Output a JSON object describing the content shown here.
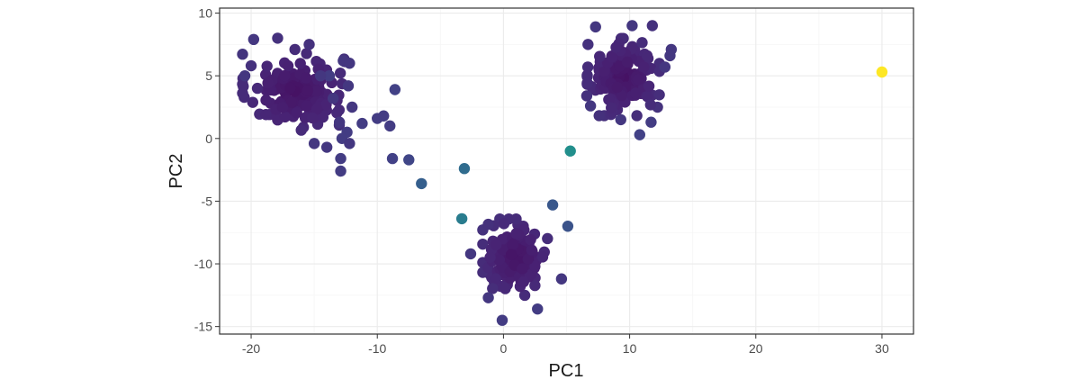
{
  "chart_data": {
    "type": "scatter",
    "title": "",
    "xlabel": "PC1",
    "ylabel": "PC2",
    "xlim": [
      -22.5,
      32.5
    ],
    "ylim": [
      -15.6,
      10.4
    ],
    "x_ticks": [
      -20,
      -10,
      0,
      10,
      20,
      30
    ],
    "y_ticks": [
      -15,
      -10,
      -5,
      0,
      5,
      10
    ],
    "x_tick_labels": [
      "-20",
      "-10",
      "0",
      "10",
      "20",
      "30"
    ],
    "y_tick_labels": [
      "-15",
      "-10",
      "-5",
      "0",
      "5",
      "10"
    ],
    "grid": true,
    "legend": "none",
    "color_scale": "viridis",
    "colors": {
      "panel_border": "#333333",
      "grid_major": "#ebebeb",
      "grid_minor": "#f5f5f5",
      "background": "#ffffff"
    },
    "clusters": [
      {
        "name": "cluster-upper-left",
        "center": [
          -16.5,
          3.8
        ],
        "spread": [
          1.9,
          1.5
        ],
        "count": 140,
        "value": 0.06
      },
      {
        "name": "cluster-upper-right",
        "center": [
          9.5,
          4.9
        ],
        "spread": [
          1.3,
          1.4
        ],
        "count": 150,
        "value": 0.06
      },
      {
        "name": "cluster-lower",
        "center": [
          1.0,
          -9.5
        ],
        "spread": [
          1.2,
          1.4
        ],
        "count": 150,
        "value": 0.06
      }
    ],
    "points": [
      {
        "x": -19.8,
        "y": 7.9,
        "value": 0.2
      },
      {
        "x": -17.9,
        "y": 8.0,
        "value": 0.18
      },
      {
        "x": -15.4,
        "y": 7.5,
        "value": 0.18
      },
      {
        "x": -12.7,
        "y": 6.2,
        "value": 0.2
      },
      {
        "x": -12.2,
        "y": 6.0,
        "value": 0.2
      },
      {
        "x": -13.8,
        "y": 5.0,
        "value": 0.22
      },
      {
        "x": -14.5,
        "y": 5.0,
        "value": 0.2
      },
      {
        "x": -20.5,
        "y": 5.0,
        "value": 0.2
      },
      {
        "x": -20.0,
        "y": 5.8,
        "value": 0.18
      },
      {
        "x": -19.5,
        "y": 4.0,
        "value": 0.15
      },
      {
        "x": -12.3,
        "y": 4.2,
        "value": 0.2
      },
      {
        "x": -13.5,
        "y": 3.2,
        "value": 0.2
      },
      {
        "x": -12.0,
        "y": 2.5,
        "value": 0.2
      },
      {
        "x": -13.0,
        "y": 1.3,
        "value": 0.2
      },
      {
        "x": -11.2,
        "y": 1.2,
        "value": 0.22
      },
      {
        "x": -10.0,
        "y": 1.6,
        "value": 0.22
      },
      {
        "x": -9.5,
        "y": 1.8,
        "value": 0.22
      },
      {
        "x": -9.0,
        "y": 1.0,
        "value": 0.22
      },
      {
        "x": -12.4,
        "y": 0.5,
        "value": 0.22
      },
      {
        "x": -12.8,
        "y": 0.0,
        "value": 0.22
      },
      {
        "x": -15.0,
        "y": -0.4,
        "value": 0.2
      },
      {
        "x": -14.0,
        "y": -0.7,
        "value": 0.2
      },
      {
        "x": -12.2,
        "y": -0.4,
        "value": 0.2
      },
      {
        "x": -12.9,
        "y": -1.6,
        "value": 0.22
      },
      {
        "x": -12.9,
        "y": -2.6,
        "value": 0.22
      },
      {
        "x": -8.6,
        "y": 3.9,
        "value": 0.24
      },
      {
        "x": -8.8,
        "y": -1.6,
        "value": 0.24
      },
      {
        "x": -7.5,
        "y": -1.7,
        "value": 0.26
      },
      {
        "x": -6.5,
        "y": -3.6,
        "value": 0.38
      },
      {
        "x": -3.1,
        "y": -2.4,
        "value": 0.44
      },
      {
        "x": -3.3,
        "y": -6.4,
        "value": 0.52
      },
      {
        "x": 5.3,
        "y": -1.0,
        "value": 0.62
      },
      {
        "x": 3.9,
        "y": -5.3,
        "value": 0.34
      },
      {
        "x": 5.1,
        "y": -7.0,
        "value": 0.32
      },
      {
        "x": -2.6,
        "y": -9.2,
        "value": 0.2
      },
      {
        "x": -1.2,
        "y": -12.7,
        "value": 0.2
      },
      {
        "x": -0.1,
        "y": -14.5,
        "value": 0.22
      },
      {
        "x": 2.7,
        "y": -13.6,
        "value": 0.22
      },
      {
        "x": 4.6,
        "y": -11.2,
        "value": 0.2
      },
      {
        "x": 7.3,
        "y": 8.9,
        "value": 0.2
      },
      {
        "x": 10.2,
        "y": 9.0,
        "value": 0.2
      },
      {
        "x": 11.8,
        "y": 9.0,
        "value": 0.18
      },
      {
        "x": 13.3,
        "y": 7.1,
        "value": 0.2
      },
      {
        "x": 13.2,
        "y": 6.6,
        "value": 0.2
      },
      {
        "x": 12.8,
        "y": 5.7,
        "value": 0.2
      },
      {
        "x": 6.7,
        "y": 7.5,
        "value": 0.18
      },
      {
        "x": 6.6,
        "y": 3.4,
        "value": 0.18
      },
      {
        "x": 6.9,
        "y": 2.6,
        "value": 0.2
      },
      {
        "x": 9.3,
        "y": 1.5,
        "value": 0.2
      },
      {
        "x": 11.7,
        "y": 1.3,
        "value": 0.22
      },
      {
        "x": 10.8,
        "y": 0.3,
        "value": 0.24
      },
      {
        "x": 30.0,
        "y": 5.3,
        "value": 1.0
      }
    ]
  }
}
